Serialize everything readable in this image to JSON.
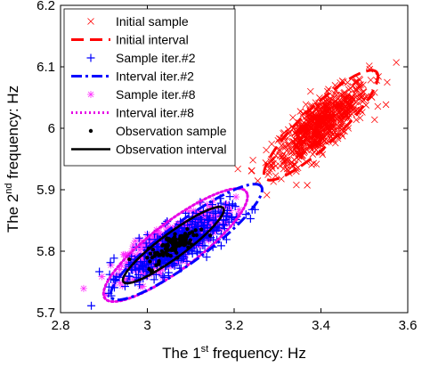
{
  "chart_data": {
    "type": "scatter",
    "title": "",
    "xlabel": {
      "pre": "The 1",
      "sup": "st",
      "post": " frequency: Hz"
    },
    "ylabel": {
      "pre": "The 2",
      "sup": "nd",
      "post": " frequency: Hz"
    },
    "xlim": [
      2.8,
      3.6
    ],
    "ylim": [
      5.7,
      6.2
    ],
    "xticks": [
      "2.8",
      "3",
      "3.2",
      "3.4",
      "3.6"
    ],
    "yticks": [
      "5.7",
      "5.8",
      "5.9",
      "6",
      "6.1",
      "6.2"
    ],
    "grid": false,
    "legend_position": "top-left",
    "series": [
      {
        "name": "Initial sample",
        "kind": "samples",
        "marker": "x",
        "color": "#ff0000",
        "center": [
          3.4,
          6.005
        ],
        "spread": [
          0.055,
          0.034
        ],
        "rho": 0.8,
        "count": 700
      },
      {
        "name": "Initial interval",
        "kind": "ellipse",
        "style": "dashed",
        "color": "#ff0000",
        "center": [
          3.4,
          6.005
        ],
        "semi_axes": [
          0.155,
          0.035
        ],
        "angle_deg": 33
      },
      {
        "name": "Sample iter.#2",
        "kind": "samples",
        "marker": "+",
        "color": "#0000ff",
        "center": [
          3.07,
          5.81
        ],
        "spread": [
          0.06,
          0.028
        ],
        "rho": 0.78,
        "count": 450
      },
      {
        "name": "Interval iter.#2",
        "kind": "ellipse",
        "style": "dashdot",
        "color": "#0000ff",
        "center": [
          3.09,
          5.815
        ],
        "semi_axes": [
          0.195,
          0.036
        ],
        "angle_deg": 27
      },
      {
        "name": "Sample iter.#8",
        "kind": "samples",
        "marker": "*",
        "color": "#ff33ff",
        "center": [
          3.06,
          5.815
        ],
        "spread": [
          0.055,
          0.026
        ],
        "rho": 0.8,
        "count": 550
      },
      {
        "name": "Interval iter.#8",
        "kind": "ellipse",
        "style": "dotted",
        "color": "#e600e6",
        "center": [
          3.065,
          5.81
        ],
        "semi_axes": [
          0.185,
          0.042
        ],
        "angle_deg": 27
      },
      {
        "name": "Observation sample",
        "kind": "samples",
        "marker": "dot",
        "color": "#000000",
        "center": [
          3.06,
          5.81
        ],
        "spread": [
          0.03,
          0.016
        ],
        "rho": 0.8,
        "count": 120
      },
      {
        "name": "Observation interval",
        "kind": "ellipse",
        "style": "solid",
        "color": "#000000",
        "center": [
          3.06,
          5.81
        ],
        "semi_axes": [
          0.13,
          0.022
        ],
        "angle_deg": 27
      }
    ]
  }
}
